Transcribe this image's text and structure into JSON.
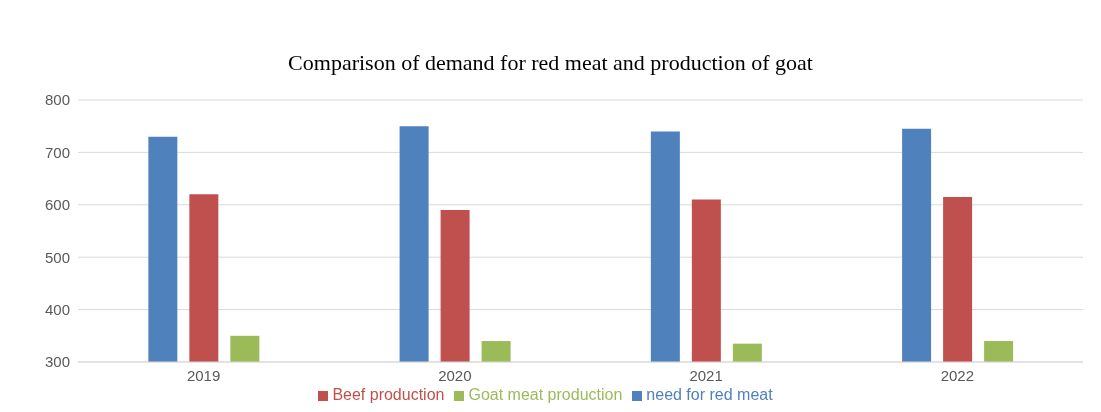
{
  "chart_data": {
    "type": "bar",
    "title": "Comparison of demand for red meat and production of goat",
    "categories": [
      "2019",
      "2020",
      "2021",
      "2022"
    ],
    "series": [
      {
        "name": "need for red meat",
        "color": "#4f81bd",
        "values": [
          730,
          750,
          740,
          745
        ]
      },
      {
        "name": "Beef production",
        "color": "#c0504d",
        "values": [
          620,
          590,
          610,
          615
        ]
      },
      {
        "name": "Goat meat production",
        "color": "#9bbb59",
        "values": [
          350,
          340,
          335,
          340
        ]
      }
    ],
    "ylim": [
      300,
      800
    ],
    "yticks": [
      300,
      400,
      500,
      600,
      700,
      800
    ],
    "grid": "y",
    "legend": "bottom"
  }
}
